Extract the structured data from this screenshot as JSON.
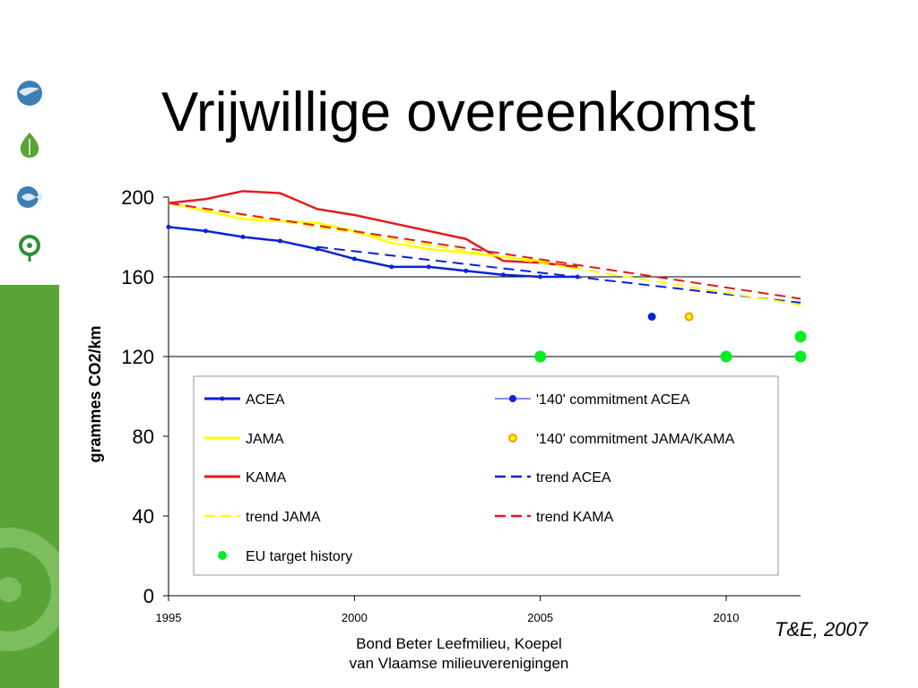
{
  "slide": {
    "title": "Vrijwillige overeenkomst",
    "source": "T&E, 2007",
    "footer_line1": "Bond Beter Leefmilieu, Koepel",
    "footer_line2": "van Vlaamse milieuverenigingen"
  },
  "logos": [
    {
      "icon": "earth-globe-icon",
      "color": "#3d7fb5"
    },
    {
      "icon": "leaf-drop-icon",
      "color": "#5aa437"
    },
    {
      "icon": "fish-icon",
      "color": "#3d7fb5"
    },
    {
      "icon": "organisation-logo-icon",
      "color": "#2f8f3a"
    }
  ],
  "colors": {
    "brand_green": "#5aa437",
    "acea": "#0a23d6",
    "jama": "#ffff00",
    "kama": "#e31a1c",
    "eu_target": "#00ee22"
  },
  "chart_data": {
    "type": "line",
    "ylabel": "grammes CO2/km",
    "xlabel": "",
    "xlim": [
      1995,
      2012
    ],
    "ylim": [
      0,
      200
    ],
    "x_ticks": [
      "1995",
      "2000",
      "2005",
      "2010"
    ],
    "y_ticks": [
      "0",
      "40",
      "80",
      "120",
      "160",
      "200"
    ],
    "grid_y": [
      120,
      160
    ],
    "legend_position": "inside-bottom",
    "series": [
      {
        "name": "ACEA",
        "style": "solid-markers",
        "color": "#0a23d6",
        "x": [
          1995,
          1996,
          1997,
          1998,
          1999,
          2000,
          2001,
          2002,
          2003,
          2004,
          2005,
          2006
        ],
        "y": [
          185,
          183,
          180,
          178,
          174,
          169,
          165,
          165,
          163,
          161,
          160,
          160
        ]
      },
      {
        "name": "JAMA",
        "style": "solid",
        "color": "#ffff00",
        "x": [
          1995,
          1996,
          1997,
          1998,
          1999,
          2000,
          2001,
          2002,
          2003,
          2004,
          2005,
          2006
        ],
        "y": [
          197,
          193,
          189,
          188,
          187,
          183,
          177,
          174,
          172,
          170,
          168,
          164
        ]
      },
      {
        "name": "KAMA",
        "style": "solid",
        "color": "#e31a1c",
        "x": [
          1995,
          1996,
          1997,
          1998,
          1999,
          2000,
          2001,
          2002,
          2003,
          2004,
          2005,
          2006
        ],
        "y": [
          197,
          199,
          203,
          202,
          194,
          191,
          187,
          183,
          179,
          168,
          167,
          165
        ]
      },
      {
        "name": "trend ACEA",
        "style": "dashed",
        "color": "#0a23d6",
        "x": [
          1999,
          2012
        ],
        "y": [
          175,
          147
        ]
      },
      {
        "name": "trend JAMA",
        "style": "dashed",
        "color": "#ffff00",
        "x": [
          1995,
          2012
        ],
        "y": [
          197,
          146
        ]
      },
      {
        "name": "trend KAMA",
        "style": "dashed",
        "color": "#e31a1c",
        "x": [
          1995,
          2012
        ],
        "y": [
          197,
          149
        ]
      }
    ],
    "points": [
      {
        "name": "'140' commitment ACEA",
        "style": "filled-dot",
        "color": "#0a23d6",
        "x": [
          2008
        ],
        "y": [
          140
        ]
      },
      {
        "name": "'140' commitment JAMA/KAMA",
        "style": "ring-dot",
        "color": "#ff9900",
        "x": [
          2009
        ],
        "y": [
          140
        ]
      },
      {
        "name": "EU target history",
        "style": "filled-dot-large",
        "color": "#00ee22",
        "x": [
          2005,
          2010,
          2012,
          2012
        ],
        "y": [
          120,
          120,
          120,
          130
        ]
      }
    ],
    "legend": [
      {
        "label": "ACEA",
        "symbol": "solid-markers",
        "color": "#0a23d6"
      },
      {
        "label": "'140' commitment ACEA",
        "symbol": "line-dot",
        "color": "#0a23d6"
      },
      {
        "label": "JAMA",
        "symbol": "solid",
        "color": "#ffff00"
      },
      {
        "label": "'140' commitment JAMA/KAMA",
        "symbol": "ring-dot",
        "color": "#ff9900"
      },
      {
        "label": "KAMA",
        "symbol": "solid",
        "color": "#e31a1c"
      },
      {
        "label": "trend ACEA",
        "symbol": "dashed",
        "color": "#0a23d6"
      },
      {
        "label": "trend JAMA",
        "symbol": "dashed",
        "color": "#ffff00"
      },
      {
        "label": "trend KAMA",
        "symbol": "dashed",
        "color": "#e31a1c"
      },
      {
        "label": "EU target history",
        "symbol": "dot",
        "color": "#00ee22"
      }
    ]
  }
}
